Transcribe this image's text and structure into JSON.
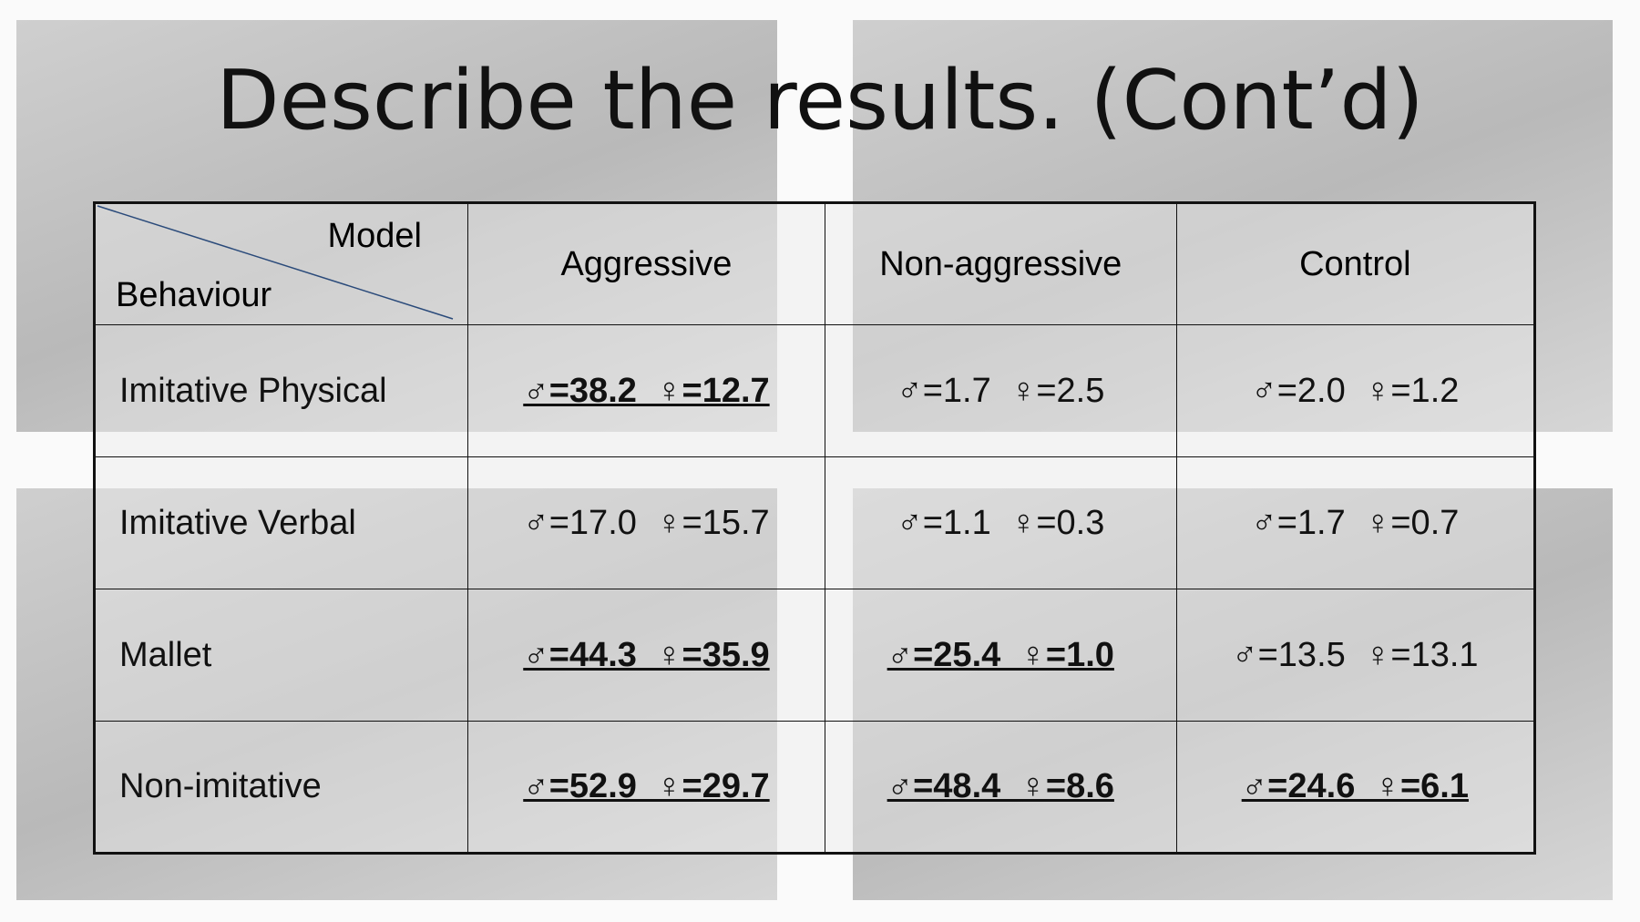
{
  "title": "Describe the results. (Cont’d)",
  "table": {
    "corner": {
      "column_label": "Model",
      "row_label": "Behaviour"
    },
    "columns": [
      "Aggressive",
      "Non-aggressive",
      "Control"
    ],
    "rows": [
      {
        "label": "Imitative Physical",
        "cells": [
          {
            "text": "♂=38.2  ♀=12.7",
            "emphasis": true
          },
          {
            "text": "♂=1.7  ♀=2.5",
            "emphasis": false
          },
          {
            "text": "♂=2.0  ♀=1.2",
            "emphasis": false
          }
        ]
      },
      {
        "label": "Imitative Verbal",
        "cells": [
          {
            "text": "♂=17.0  ♀=15.7",
            "emphasis": false
          },
          {
            "text": "♂=1.1  ♀=0.3",
            "emphasis": false
          },
          {
            "text": "♂=1.7  ♀=0.7",
            "emphasis": false
          }
        ]
      },
      {
        "label": "Mallet",
        "cells": [
          {
            "text": "♂=44.3  ♀=35.9",
            "emphasis": true
          },
          {
            "text": "♂=25.4  ♀=1.0",
            "emphasis": true
          },
          {
            "text": "♂=13.5  ♀=13.1",
            "emphasis": false
          }
        ]
      },
      {
        "label": "Non-imitative",
        "cells": [
          {
            "text": "♂=52.9  ♀=29.7",
            "emphasis": true
          },
          {
            "text": "♂=48.4  ♀=8.6",
            "emphasis": true
          },
          {
            "text": "♂=24.6  ♀=6.1",
            "emphasis": true
          }
        ]
      }
    ]
  }
}
